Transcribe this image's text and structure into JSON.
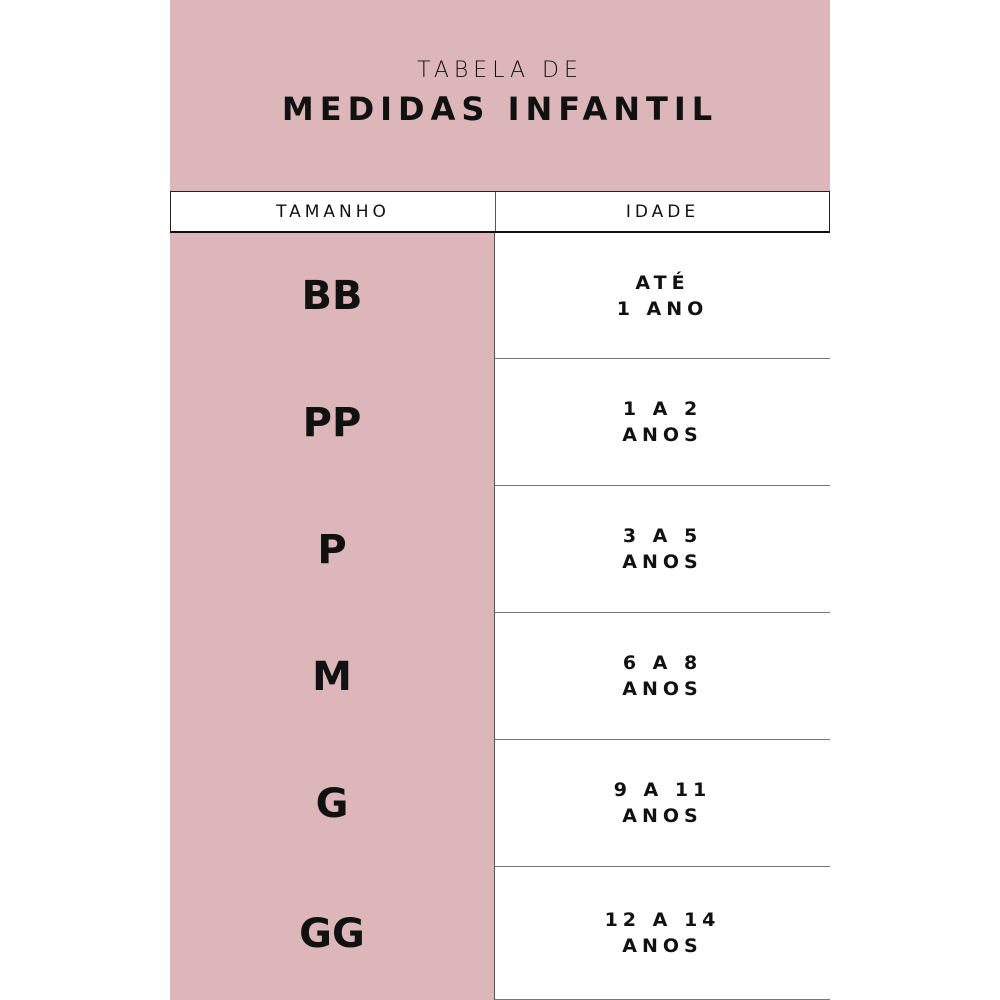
{
  "header": {
    "line1": "TABELA DE",
    "line2": "MEDIDAS INFANTIL"
  },
  "columns": {
    "size": "TAMANHO",
    "age": "IDADE"
  },
  "rows": [
    {
      "size": "BB",
      "age1": "ATÉ",
      "age2": "1 ANO"
    },
    {
      "size": "PP",
      "age1": "1 A 2",
      "age2": "ANOS"
    },
    {
      "size": "P",
      "age1": "3 A 5",
      "age2": "ANOS"
    },
    {
      "size": "M",
      "age1": "6 A 8",
      "age2": "ANOS"
    },
    {
      "size": "G",
      "age1": "9 A 11",
      "age2": "ANOS"
    },
    {
      "size": "GG",
      "age1": "12 A 14",
      "age2": "ANOS"
    }
  ],
  "colors": {
    "accent": "#dcb6b9"
  }
}
